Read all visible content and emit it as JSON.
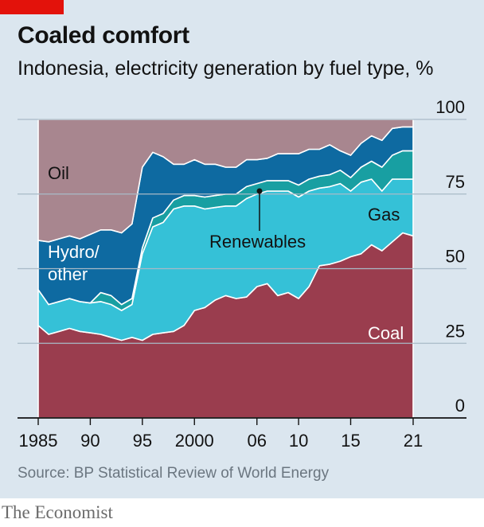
{
  "header": {
    "title": "Coaled comfort",
    "subtitle": "Indonesia, electricity generation by fuel type, %"
  },
  "footer": {
    "source": "Source: BP Statistical Review of World Energy",
    "brand": "The Economist"
  },
  "colors": {
    "background": "#dbe6ef",
    "coal": "#9a3d4e",
    "gas": "#35c1d7",
    "renewables": "#189fa2",
    "hydro_other": "#0e6aa1",
    "oil": "#a8868f",
    "tag": "#e3120b"
  },
  "chart_data": {
    "type": "area",
    "stacked": true,
    "x": [
      1985,
      1986,
      1987,
      1988,
      1989,
      1990,
      1991,
      1992,
      1993,
      1994,
      1995,
      1996,
      1997,
      1998,
      1999,
      2000,
      2001,
      2002,
      2003,
      2004,
      2005,
      2006,
      2007,
      2008,
      2009,
      2010,
      2011,
      2012,
      2013,
      2014,
      2015,
      2016,
      2017,
      2018,
      2019,
      2020,
      2021
    ],
    "series": [
      {
        "key": "coal",
        "name": "Coal",
        "values": [
          31,
          28,
          29,
          30,
          29,
          28.5,
          28,
          27,
          26,
          27,
          26,
          28,
          28.5,
          29,
          31,
          36,
          37,
          39.5,
          41,
          40,
          40.5,
          44,
          45,
          41,
          42,
          40,
          44,
          51,
          51.5,
          52.5,
          54,
          55,
          58,
          56,
          59,
          62,
          61
        ]
      },
      {
        "key": "gas",
        "name": "Gas",
        "values": [
          12,
          10,
          10,
          10,
          10,
          10,
          11,
          11,
          10,
          11,
          29,
          36,
          37,
          41,
          40,
          35,
          33,
          31,
          30,
          31,
          33,
          31,
          31,
          35,
          34,
          34,
          32,
          26,
          26,
          26,
          22,
          24,
          22,
          20,
          21,
          18,
          19
        ]
      },
      {
        "key": "renewables",
        "name": "Renewables",
        "values": [
          0,
          0,
          0,
          0,
          0,
          0,
          3,
          3,
          2,
          2,
          2,
          3,
          3,
          3,
          3.5,
          3.5,
          4,
          4,
          4,
          4,
          4,
          3.5,
          3.5,
          3.5,
          3.5,
          4,
          4,
          4,
          4,
          4.5,
          4.5,
          5,
          6,
          8,
          8,
          9.5,
          9.5
        ]
      },
      {
        "key": "hydro_other",
        "name": "Hydro/ other",
        "values": [
          16.5,
          21,
          21,
          21,
          21,
          23,
          21,
          22,
          24,
          25,
          27,
          22,
          19,
          12,
          10.5,
          12,
          11,
          10.5,
          9,
          9,
          9,
          8,
          7.5,
          9,
          9,
          10.5,
          10,
          9,
          10,
          6.5,
          7.5,
          8,
          8.5,
          9,
          9,
          8,
          8
        ]
      },
      {
        "key": "oil",
        "name": "Oil",
        "values": [
          40.5,
          41,
          40,
          39,
          40,
          38.5,
          37,
          37,
          38,
          35,
          16,
          11,
          12.5,
          15,
          15,
          13.5,
          15,
          15,
          16,
          16,
          13.5,
          13.5,
          13,
          11.5,
          11.5,
          11.5,
          10,
          10,
          8.5,
          10.5,
          12,
          8,
          5.5,
          7,
          3,
          2.5,
          2.5
        ]
      }
    ],
    "y_ticks": [
      0,
      25,
      50,
      75,
      100
    ],
    "x_ticks": [
      {
        "value": 1985,
        "label": "1985"
      },
      {
        "value": 1990,
        "label": "90"
      },
      {
        "value": 1995,
        "label": "95"
      },
      {
        "value": 2000,
        "label": "2000"
      },
      {
        "value": 2006,
        "label": "06"
      },
      {
        "value": 2010,
        "label": "10"
      },
      {
        "value": 2015,
        "label": "15"
      },
      {
        "value": 2021,
        "label": "21"
      }
    ],
    "ylim": [
      0,
      100
    ],
    "xlim": [
      1985,
      2021
    ],
    "grid": true,
    "y_axis_side": "right",
    "labels": {
      "oil": "Oil",
      "hydro_line1": "Hydro/",
      "hydro_line2": "other",
      "renewables": "Renewables",
      "gas": "Gas",
      "coal": "Coal"
    }
  }
}
